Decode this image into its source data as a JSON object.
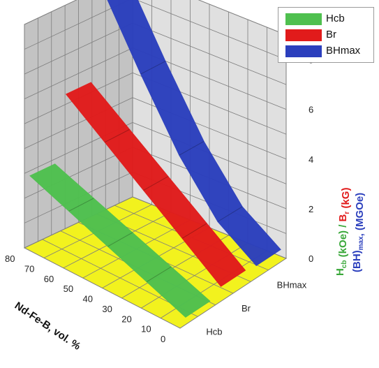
{
  "chart_data": {
    "type": "3d-ribbon",
    "categories": [
      "Hcb",
      "Br",
      "BHmax"
    ],
    "x": [
      0,
      10,
      20,
      30,
      40,
      50,
      60,
      70,
      80
    ],
    "x_label": "Nd-Fe-B, vol. %",
    "z_ticks": [
      0,
      2,
      4,
      6,
      8
    ],
    "z_range": [
      0,
      9
    ],
    "x_range": [
      0,
      80
    ],
    "legend_placement": "top-right",
    "grid": true,
    "series": [
      {
        "name": "Hcb",
        "color": "#4fc04f",
        "x": [
          0,
          80
        ],
        "values": [
          0.3,
          2.8
        ]
      },
      {
        "name": "Br",
        "color": "#e11b1b",
        "x": [
          0,
          80
        ],
        "values": [
          0.6,
          5.4
        ]
      },
      {
        "name": "BHmax",
        "color": "#2b3fbd",
        "x": [
          0,
          20,
          40,
          60,
          80
        ],
        "values": [
          0.5,
          1.6,
          3.6,
          6.2,
          9.0
        ]
      }
    ],
    "z_label_parts": [
      {
        "text": "H",
        "color": "#3aa83a",
        "sub": "cb"
      },
      {
        "text": " (kOe) / ",
        "color": "#3aa83a"
      },
      {
        "text": "B",
        "color": "#e11b1b",
        "sub": "r"
      },
      {
        "text": " (kG)",
        "color": "#e11b1b"
      }
    ],
    "z_label2_parts": [
      {
        "text": "(BH)",
        "color": "#2b3fbd",
        "sub": "max"
      },
      {
        "text": ", (MGOe)",
        "color": "#2b3fbd"
      }
    ],
    "colors": {
      "floor": "#f2f21e",
      "back_wall": "#c3c3c3",
      "side_wall": "#e0e0e0",
      "grid": "#7d7d7d"
    }
  }
}
